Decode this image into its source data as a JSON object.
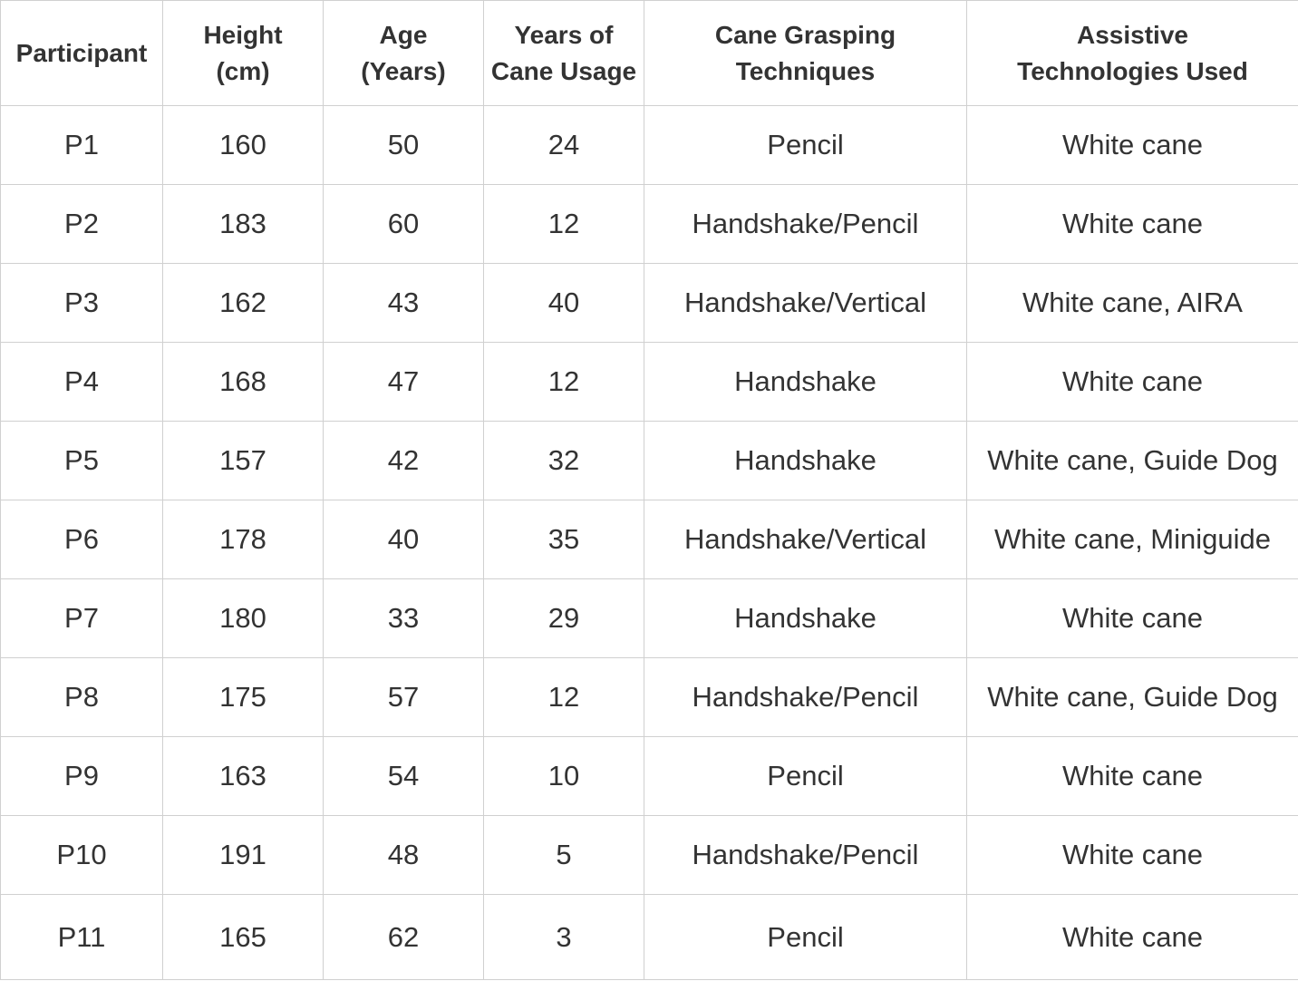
{
  "table": {
    "headers": [
      [
        "Participant"
      ],
      [
        "Height",
        "(cm)"
      ],
      [
        "Age",
        "(Years)"
      ],
      [
        "Years of",
        "Cane Usage"
      ],
      [
        "Cane Grasping",
        "Techniques"
      ],
      [
        "Assistive",
        "Technologies Used"
      ]
    ],
    "rows": [
      [
        "P1",
        "160",
        "50",
        "24",
        "Pencil",
        "White cane"
      ],
      [
        "P2",
        "183",
        "60",
        "12",
        "Handshake/Pencil",
        "White cane"
      ],
      [
        "P3",
        "162",
        "43",
        "40",
        "Handshake/Vertical",
        "White cane, AIRA"
      ],
      [
        "P4",
        "168",
        "47",
        "12",
        "Handshake",
        "White cane"
      ],
      [
        "P5",
        "157",
        "42",
        "32",
        "Handshake",
        "White cane, Guide Dog"
      ],
      [
        "P6",
        "178",
        "40",
        "35",
        "Handshake/Vertical",
        "White cane, Miniguide"
      ],
      [
        "P7",
        "180",
        "33",
        "29",
        "Handshake",
        "White cane"
      ],
      [
        "P8",
        "175",
        "57",
        "12",
        "Handshake/Pencil",
        "White cane, Guide Dog"
      ],
      [
        "P9",
        "163",
        "54",
        "10",
        "Pencil",
        "White cane"
      ],
      [
        "P10",
        "191",
        "48",
        "5",
        "Handshake/Pencil",
        "White cane"
      ],
      [
        "P11",
        "165",
        "62",
        "3",
        "Pencil",
        "White cane"
      ]
    ]
  }
}
